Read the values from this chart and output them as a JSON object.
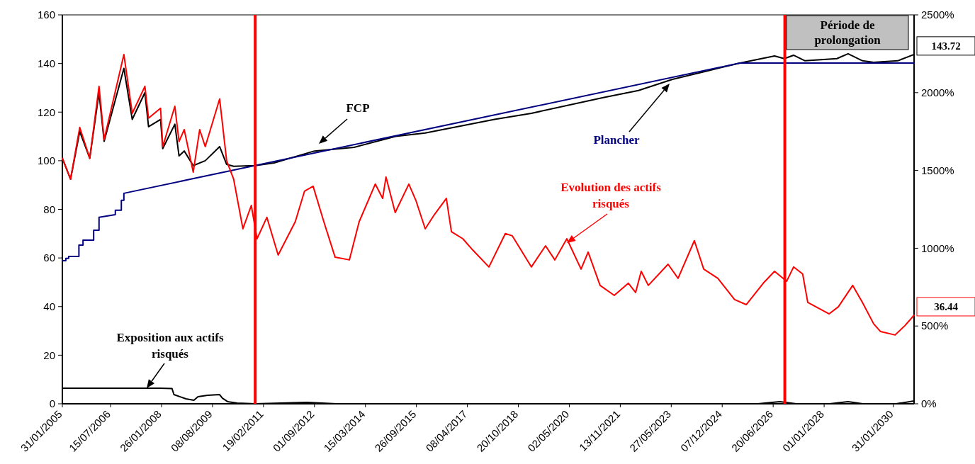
{
  "chart_data": {
    "type": "line",
    "legend": false,
    "grid": false,
    "xlim": [
      "2005-01-31",
      "2030-09-15"
    ],
    "xticks": [
      {
        "value": "2005-01-31",
        "label": "31/01/2005"
      },
      {
        "value": "2006-07-15",
        "label": "15/07/2006"
      },
      {
        "value": "2008-01-26",
        "label": "26/01/2008"
      },
      {
        "value": "2009-08-08",
        "label": "08/08/2009"
      },
      {
        "value": "2011-02-19",
        "label": "19/02/2011"
      },
      {
        "value": "2012-09-01",
        "label": "01/09/2012"
      },
      {
        "value": "2014-03-15",
        "label": "15/03/2014"
      },
      {
        "value": "2015-09-26",
        "label": "26/09/2015"
      },
      {
        "value": "2017-04-08",
        "label": "08/04/2017"
      },
      {
        "value": "2018-10-20",
        "label": "20/10/2018"
      },
      {
        "value": "2020-05-02",
        "label": "02/05/2020"
      },
      {
        "value": "2021-11-13",
        "label": "13/11/2021"
      },
      {
        "value": "2023-05-27",
        "label": "27/05/2023"
      },
      {
        "value": "2024-12-07",
        "label": "07/12/2024"
      },
      {
        "value": "2026-06-20",
        "label": "20/06/2026"
      },
      {
        "value": "2028-01-01",
        "label": "01/01/2028"
      },
      {
        "value": "2030-01-31",
        "label": "31/01/2030"
      }
    ],
    "ylim": [
      0,
      160
    ],
    "yticks": [
      0,
      20,
      40,
      60,
      80,
      100,
      120,
      140,
      160
    ],
    "y2lim": [
      0,
      2500
    ],
    "y2ticks": [
      {
        "value": 0,
        "label": "0%"
      },
      {
        "value": 500,
        "label": "500%"
      },
      {
        "value": 1000,
        "label": "1000%"
      },
      {
        "value": 1500,
        "label": "1500%"
      },
      {
        "value": 2000,
        "label": "2000%"
      },
      {
        "value": 2500,
        "label": "2500%"
      }
    ],
    "ref_lines": [
      {
        "axis": "x",
        "value": "2010-11-20",
        "color": "#ff0000"
      },
      {
        "axis": "x",
        "value": "2026-10-26",
        "color": "#ff0000"
      }
    ],
    "annotations": [
      "Période de prolongation",
      {
        "text": "143.72",
        "x": "2030-09-15",
        "y": 143.72
      },
      {
        "text": "36.44",
        "x": "2030-09-15",
        "y": 36.44
      }
    ],
    "series": [
      {
        "name": "FCP",
        "color": "#000000",
        "x": [
          "2005-01-31",
          "2005-05-01",
          "2005-08-10",
          "2005-11-28",
          "2006-03-10",
          "2006-05-05",
          "2006-12-08",
          "2007-03-10",
          "2007-07-27",
          "2007-09-05",
          "2008-01-15",
          "2008-02-08",
          "2008-06-20",
          "2008-08-05",
          "2008-10-01",
          "2009-01-08",
          "2009-05-20",
          "2009-10-25",
          "2010-01-10",
          "2010-03-28",
          "2010-11-20",
          "2011-06-15",
          "2012-09-01",
          "2013-11-10",
          "2015-02-10",
          "2016-01-01",
          "2018-02-01",
          "2019-03-12",
          "2021-05-10",
          "2022-06-01",
          "2023-06-10",
          "2024-07-01",
          "2025-06-20",
          "2026-07-05",
          "2026-10-20",
          "2027-01-30",
          "2027-06-05",
          "2028-05-20",
          "2028-09-20",
          "2029-02-25",
          "2029-06-28",
          "2030-03-20",
          "2030-09-15"
        ],
        "values": [
          101,
          92.4,
          112,
          101,
          128,
          108,
          138,
          117,
          128,
          114,
          117,
          105,
          115,
          102,
          104,
          98,
          100,
          105.8,
          98.5,
          97.7,
          98,
          99.1,
          104,
          105.5,
          110,
          111.4,
          117,
          119.5,
          126,
          128.9,
          133.5,
          137,
          140.2,
          143.1,
          142,
          143.4,
          141.1,
          142,
          144,
          141.1,
          140.5,
          141.1,
          143.72
        ]
      },
      {
        "name": "Plancher",
        "color": "#000080",
        "x": [
          "2005-01-31",
          "2005-03-10",
          "2005-03-10",
          "2005-04-10",
          "2005-04-10",
          "2005-08-01",
          "2005-08-01",
          "2005-09-15",
          "2005-09-15",
          "2006-01-10",
          "2006-01-10",
          "2006-03-10",
          "2006-03-10",
          "2006-09-05",
          "2006-09-05",
          "2006-11-10",
          "2006-11-10",
          "2006-12-08",
          "2006-12-08",
          "2025-06-20",
          "2030-09-15"
        ],
        "values": [
          58.9,
          58.9,
          59.8,
          59.8,
          60.6,
          60.6,
          65.3,
          65.3,
          67.3,
          67.3,
          71.4,
          71.4,
          76.7,
          77.8,
          79.6,
          79.6,
          83.7,
          83.7,
          86.6,
          140.2,
          140.2
        ]
      },
      {
        "name": "Evolution des actifs risqués",
        "color": "#ff0000",
        "x": [
          "2005-01-31",
          "2005-05-01",
          "2005-08-10",
          "2005-11-28",
          "2006-03-10",
          "2006-05-05",
          "2006-12-08",
          "2007-03-10",
          "2007-07-27",
          "2007-09-05",
          "2008-01-15",
          "2008-02-08",
          "2008-06-20",
          "2008-08-05",
          "2008-10-01",
          "2009-01-08",
          "2009-03-20",
          "2009-05-20",
          "2009-10-25",
          "2010-01-10",
          "2010-03-28",
          "2010-07-08",
          "2010-10-08",
          "2010-12-10",
          "2011-03-28",
          "2011-07-30",
          "2012-02-03",
          "2012-05-15",
          "2012-08-17",
          "2012-12-13",
          "2013-04-16",
          "2013-09-20",
          "2014-01-05",
          "2014-07-01",
          "2014-09-20",
          "2014-10-27",
          "2015-02-05",
          "2015-07-05",
          "2015-09-20",
          "2016-01-01",
          "2016-04-10",
          "2016-08-20",
          "2016-10-15",
          "2017-02-17",
          "2017-06-05",
          "2017-12-01",
          "2018-05-30",
          "2018-08-15",
          "2019-03-12",
          "2019-08-15",
          "2019-11-25",
          "2020-04-05",
          "2020-09-08",
          "2020-11-25",
          "2021-04-05",
          "2021-09-08",
          "2022-02-10",
          "2022-05-01",
          "2022-07-01",
          "2022-09-17",
          "2023-04-22",
          "2023-08-10",
          "2024-02-05",
          "2024-05-18",
          "2024-10-20",
          "2025-04-22",
          "2025-08-28",
          "2026-03-03",
          "2026-07-05",
          "2026-11-15",
          "2027-01-30",
          "2027-05-10",
          "2027-07-05",
          "2028-02-25",
          "2028-06-05",
          "2028-11-10",
          "2029-02-25",
          "2029-06-28",
          "2029-09-12",
          "2030-02-18",
          "2030-06-05",
          "2030-09-15"
        ],
        "values": [
          101,
          92.4,
          113.7,
          101,
          130.6,
          108.7,
          143.7,
          119.5,
          130.6,
          117.5,
          121.6,
          105.8,
          122.4,
          107.9,
          112.8,
          95.3,
          112.8,
          105.8,
          125.4,
          100,
          92.4,
          72,
          81.6,
          67.9,
          76.7,
          61.2,
          74.9,
          87.5,
          89.5,
          74.9,
          60.3,
          59.2,
          74.9,
          90.4,
          84.5,
          93.3,
          78.7,
          90.4,
          83.7,
          72,
          77.8,
          84.5,
          70.8,
          67.9,
          63.3,
          56.3,
          70,
          69.1,
          56.3,
          65,
          59.2,
          67.9,
          55.4,
          62.4,
          48.7,
          44.6,
          49.6,
          45.8,
          54.5,
          48.7,
          57.4,
          51.6,
          67.1,
          55.4,
          51.6,
          42.9,
          40.8,
          49.6,
          54.5,
          50.4,
          56.3,
          53.4,
          41.7,
          37,
          39.9,
          48.7,
          41.7,
          32.9,
          29.7,
          28.3,
          32.1,
          36.44
        ]
      },
      {
        "name": "Exposition aux actifs risqués",
        "color": "#000000",
        "axis": "y2",
        "x": [
          "2005-01-31",
          "2008-01-05",
          "2008-05-20",
          "2008-06-10",
          "2008-10-20",
          "2009-01-15",
          "2009-03-01",
          "2009-06-15",
          "2009-10-25",
          "2009-11-25",
          "2010-01-20",
          "2010-05-05",
          "2010-11-20",
          "2012-06-10",
          "2013-05-01",
          "2026-01-01",
          "2026-09-01",
          "2027-03-01",
          "2028-03-01",
          "2028-09-20",
          "2029-03-01",
          "2030-03-01",
          "2030-09-15"
        ],
        "values": [
          100,
          100,
          98,
          59,
          32,
          23,
          46,
          55,
          59,
          36,
          14,
          5,
          0,
          9,
          0,
          0,
          14,
          0,
          0,
          14,
          0,
          0,
          18
        ]
      }
    ]
  }
}
